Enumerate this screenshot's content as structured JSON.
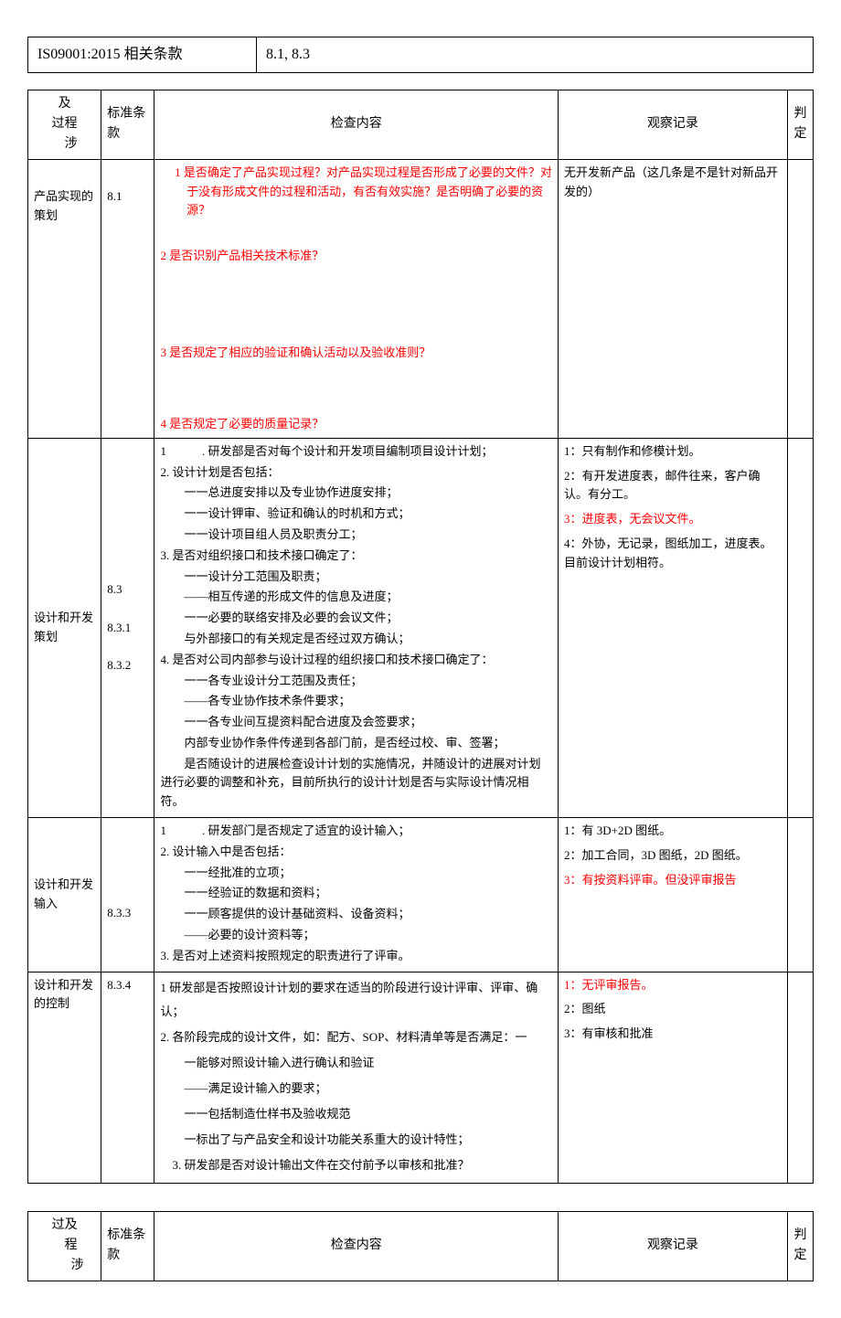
{
  "header": {
    "label": "IS09001:2015 相关条款",
    "value": "8.1, 8.3"
  },
  "columns": {
    "process": "及\n过程\n　涉",
    "clause": "标准条\n款",
    "check": "检查内容",
    "obs": "观察记录",
    "judge": "判\n定"
  },
  "rows": [
    {
      "process": "产品实现的\n策划",
      "clause": "8.1",
      "check_red": true,
      "check_lines": [
        "1 是否确定了产品实现过程？对产品实现过程是否形成了必要的文件？对于没有形成文件的过程和活动，有否有效实施？是否明确了必要的资源？",
        "",
        "2 是否识别产品相关技术标准？",
        "",
        "",
        "3 是否规定了相应的验证和确认活动以及验收准则？",
        "",
        "4 是否规定了必要的质量记录？"
      ],
      "obs_lines": [
        {
          "t": "无开发新产品（这几条是不是针对新品开发的）",
          "red": false
        }
      ]
    },
    {
      "process": "设计和开发策划",
      "clause": "8.3\n\n8.3.1\n\n8.3.2",
      "check_red": false,
      "check_lines": [
        "1　　　. 研发部是否对每个设计和开发项目编制项目设计计划；",
        "2. 设计计划是否包括：",
        "　　一一总进度安排以及专业协作进度安排；",
        "　　一一设计钾审、验证和确认的时机和方式；",
        "　　一一设计项目组人员及职责分工；",
        "3. 是否对组织接口和技术接口确定了：",
        "　　一一设计分工范围及职责；",
        "　　——相互传递的形成文件的信息及进度；",
        "　　一一必要的联络安排及必要的会议文件；",
        "　　与外部接口的有关规定是否经过双方确认；",
        "4. 是否对公司内部参与设计过程的组织接口和技术接口确定了：",
        "　　一一各专业设计分工范围及责任；",
        "　　——各专业协作技术条件要求；",
        "　　一一各专业间互提资料配合进度及会签要求；",
        "　　内部专业协作条件传递到各部门前，是否经过校、审、签署；",
        "　　是否随设计的进展检查设计计划的实施情况，并随设计的进展对计划进行必要的调整和补充，目前所执行的设计计划是否与实际设计情况相符。"
      ],
      "obs_lines": [
        {
          "t": "1：只有制作和修模计划。",
          "red": false
        },
        {
          "t": "2：有开发进度表，邮件往来，客户确认。有分工。",
          "red": false
        },
        {
          "t": "3：进度表，无会议文件。",
          "red": true
        },
        {
          "t": "4：外协，无记录，图纸加工，进度表。目前设计计划相符。",
          "red": false
        }
      ]
    },
    {
      "process": "设计和开发\n输入",
      "clause": "\n\n8.3.3",
      "check_red": false,
      "check_lines": [
        "1　　　. 研发部门是否规定了适宜的设计输入；",
        "2. 设计输入中是否包括：",
        "　　一一经批准的立项；",
        "　　一一经验证的数据和资料；",
        "　　一一顾客提供的设计基础资料、设备资料；",
        "　　——必要的设计资料等；",
        "3. 是否对上述资料按照规定的职责进行了评审。"
      ],
      "obs_lines": [
        {
          "t": "1：有 3D+2D 图纸。",
          "red": false
        },
        {
          "t": "2：加工合同，3D 图纸，2D 图纸。",
          "red": false
        },
        {
          "t": "3：有按资料评审。但没评审报告",
          "red": true
        }
      ]
    },
    {
      "process": "设计和开发\n的控制",
      "clause": "8.3.4",
      "check_red": false,
      "check_lines": [
        "1 研发部是否按照设计计划的要求在适当的阶段进行设计评审、评审、确认；",
        "2. 各阶段完成的设计文件，如：配方、SOP、材料清单等是否满足：一",
        "　　一能够对照设计输入进行确认和验证",
        "　　——满足设计输入的要求；",
        "　　一一包括制造仕样书及验收规范",
        "　　一标出了与产品安全和设计功能关系重大的设计特性；",
        "　3. 研发部是否对设计输出文件在交付前予以审核和批准？"
      ],
      "obs_lines": [
        {
          "t": "1：无评审报告。",
          "red": true
        },
        {
          "t": "2：图纸",
          "red": false
        },
        {
          "t": "3：有审核和批准",
          "red": false
        }
      ]
    }
  ],
  "footer_columns": {
    "process": "过及\n　程\n　　涉",
    "clause": "标准条\n款",
    "check": "检查内容",
    "obs": "观察记录",
    "judge": "判\n定"
  }
}
